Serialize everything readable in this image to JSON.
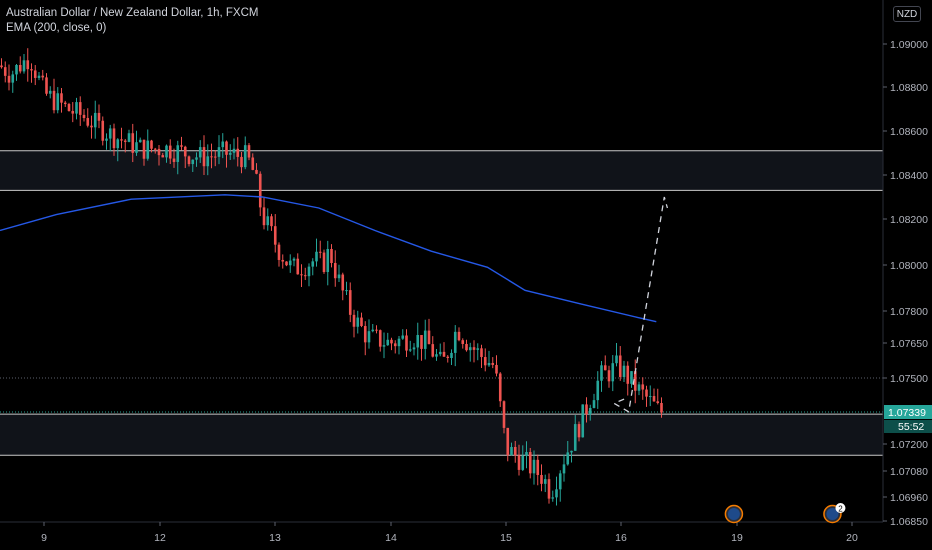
{
  "legend": {
    "title": "Australian Dollar / New Zealand Dollar, 1h, FXCM",
    "indicator": "EMA (200, close, 0)"
  },
  "currency_label": "NZD",
  "last_price_label": "1.07339",
  "countdown_label": "55:52",
  "event_badge_count": "2",
  "colors": {
    "background": "#000000",
    "up": "#26a69a",
    "down": "#ef5350",
    "ema": "#2962ff",
    "zone_border": "#c9c9c9",
    "projection": "#d1d4dc",
    "last_price_tag": "#26a69a"
  },
  "chart_data": {
    "type": "candlestick",
    "title": "Australian Dollar / New Zealand Dollar, 1h, FXCM",
    "ylim": [
      1.0685,
      1.0915
    ],
    "y_ticks": [
      "1.09000",
      "1.08800",
      "1.08600",
      "1.08400",
      "1.08200",
      "1.08000",
      "1.07800",
      "1.07650",
      "1.07500",
      "1.07339",
      "1.07200",
      "1.07080",
      "1.06960",
      "1.06850"
    ],
    "x_ticks": [
      {
        "label": "9",
        "day": 9
      },
      {
        "label": "12",
        "day": 12
      },
      {
        "label": "13",
        "day": 13
      },
      {
        "label": "14",
        "day": 14
      },
      {
        "label": "15",
        "day": 15
      },
      {
        "label": "16",
        "day": 16
      },
      {
        "label": "19",
        "day": 19
      },
      {
        "label": "20",
        "day": 20
      }
    ],
    "candle_path": [
      [
        0,
        1.089
      ],
      [
        3,
        1.0886
      ],
      [
        6,
        1.0891
      ],
      [
        8,
        1.0894
      ],
      [
        12,
        1.0877
      ],
      [
        18,
        1.087
      ],
      [
        22,
        1.0867
      ],
      [
        30,
        1.0858
      ],
      [
        38,
        1.0852
      ],
      [
        45,
        1.0852
      ],
      [
        54,
        1.0848
      ],
      [
        60,
        1.085
      ],
      [
        66,
        1.0848
      ],
      [
        68,
        1.084
      ],
      [
        70,
        1.0822
      ],
      [
        74,
        1.0808
      ],
      [
        78,
        1.0798
      ],
      [
        84,
        1.0802
      ],
      [
        86,
        1.08
      ],
      [
        88,
        1.0806
      ],
      [
        91,
        1.079
      ],
      [
        94,
        1.0778
      ],
      [
        98,
        1.0768
      ],
      [
        104,
        1.0765
      ],
      [
        110,
        1.0768
      ],
      [
        114,
        1.0765
      ],
      [
        118,
        1.0755
      ],
      [
        122,
        1.0772
      ],
      [
        125,
        1.0765
      ],
      [
        128,
        1.076
      ],
      [
        132,
        1.0755
      ],
      [
        135,
        1.0718
      ],
      [
        140,
        1.0712
      ],
      [
        145,
        1.0705
      ],
      [
        147,
        1.0698
      ],
      [
        150,
        1.0712
      ],
      [
        155,
        1.073
      ],
      [
        160,
        1.075
      ],
      [
        165,
        1.0755
      ],
      [
        170,
        1.0745
      ],
      [
        175,
        1.0736
      ],
      [
        176,
        1.0734
      ]
    ],
    "series": [
      {
        "name": "EMA (200, close, 0)",
        "type": "line",
        "points": [
          [
            0,
            1.0815
          ],
          [
            15,
            1.0822
          ],
          [
            35,
            1.0829
          ],
          [
            60,
            1.0831
          ],
          [
            70,
            1.083
          ],
          [
            85,
            1.0825
          ],
          [
            100,
            1.0815
          ],
          [
            115,
            1.0806
          ],
          [
            130,
            1.0799
          ],
          [
            140,
            1.0789
          ],
          [
            155,
            1.0783
          ],
          [
            170,
            1.0777
          ],
          [
            175,
            1.0775
          ]
        ]
      }
    ],
    "bars_per_day": 24,
    "first_bar_day": 8.72,
    "zones": [
      {
        "top": 1.0851,
        "bottom": 1.0833
      },
      {
        "top": 1.0733,
        "bottom": 1.0715
      }
    ],
    "dotted_levels": [
      1.075,
      1.07339
    ],
    "projection": [
      {
        "day": 16.08,
        "price": 1.074
      },
      {
        "day": 15.94,
        "price": 1.0738
      },
      {
        "day": 16.2,
        "price": 1.0734
      },
      {
        "day": 17.12,
        "price": 1.083
      },
      {
        "day": 17.2,
        "price": 1.0825
      }
    ]
  }
}
